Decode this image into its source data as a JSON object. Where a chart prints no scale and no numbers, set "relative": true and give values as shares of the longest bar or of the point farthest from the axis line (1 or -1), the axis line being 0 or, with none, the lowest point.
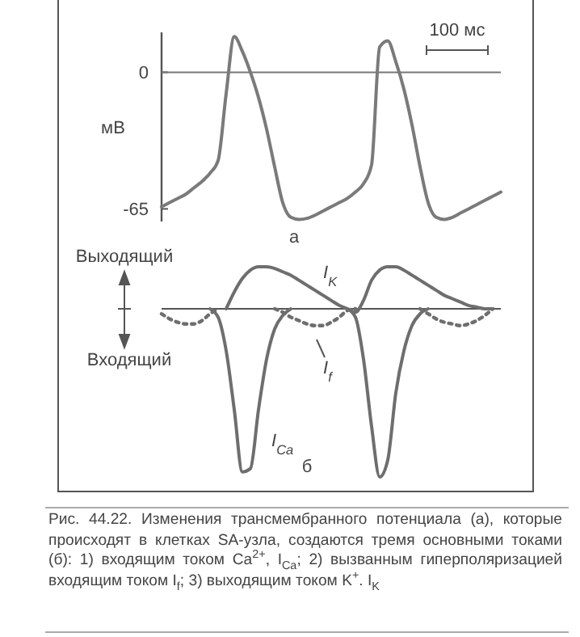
{
  "chart_data": [
    {
      "type": "line",
      "ylabel": "мВ",
      "annotations": [
        "а",
        "100 мс"
      ],
      "categories": [
        null,
        null,
        null,
        null,
        null,
        null,
        null,
        null,
        null,
        null,
        null,
        null,
        null,
        null,
        null,
        null,
        null,
        null,
        null,
        null,
        null,
        null,
        null,
        null,
        null,
        null,
        null,
        null,
        null,
        null,
        null,
        null,
        null,
        null,
        null,
        null,
        null,
        null,
        null,
        null,
        null,
        null,
        null
      ],
      "series": [
        {
          "color": "#7a7a7a",
          "values": [
            -64,
            -62,
            -60,
            -58,
            -55,
            -52,
            -48,
            -42,
            -10,
            17,
            10,
            0,
            -12,
            -27,
            -45,
            -62,
            -69,
            -70,
            -69.5,
            -68,
            -66,
            -64,
            -62,
            -60,
            -57,
            -53,
            -44,
            12,
            15,
            5,
            -8,
            -25,
            -45,
            -62,
            -69,
            -70,
            -69,
            -67,
            -65,
            -63,
            -61,
            -59,
            -57
          ]
        }
      ],
      "ylim": [
        -71,
        19
      ],
      "yticks": [
        0,
        -65
      ],
      "ref_lines": [
        {
          "axis": "y",
          "value": 0
        }
      ]
    },
    {
      "type": "line",
      "relative": true,
      "annotations": [
        "Выходящий",
        "Входящий",
        "б",
        "Рис. 44.22. Изменения трансмембранного потенциала (а), которые происходят в клетках SA-узла, создаются тремя основными токами (б): 1) входящим током Ca$^{2+}$, I$_{Ca}$; 2) вызванным гиперполяризацией входящим током I$_{f}$; 3) выходящим током K$^{+}$. I$_{K}$"
      ],
      "categories": [
        null,
        null,
        null,
        null,
        null,
        null,
        null,
        null,
        null,
        null,
        null,
        null,
        null,
        null,
        null,
        null,
        null,
        null,
        null,
        null,
        null,
        null,
        null,
        null,
        null,
        null,
        null,
        null,
        null,
        null,
        null,
        null,
        null,
        null,
        null,
        null,
        null,
        null,
        null,
        null,
        null,
        null,
        null
      ],
      "series": [
        {
          "name": "I$_{K}$",
          "color": "#6e6e6e",
          "line_style": "solid",
          "values": [
            null,
            null,
            null,
            null,
            null,
            null,
            null,
            null,
            0,
            0.1,
            0.18,
            0.23,
            0.25,
            0.25,
            0.24,
            0.22,
            0.2,
            0.17,
            0.14,
            0.11,
            0.08,
            0.05,
            0.02,
            0,
            -0.02,
            0.05,
            0.17,
            0.23,
            0.25,
            0.25,
            0.23,
            0.2,
            0.17,
            0.14,
            0.11,
            0.08,
            0.06,
            0.04,
            0.02,
            0.01,
            0,
            0,
            null
          ]
        },
        {
          "name": "I$_{f}$",
          "color": "#6e6e6e",
          "line_style": "dotted",
          "values": [
            -0.03,
            -0.06,
            -0.08,
            -0.09,
            -0.09,
            -0.07,
            -0.03,
            0,
            null,
            null,
            null,
            null,
            null,
            null,
            0,
            -0.02,
            -0.05,
            -0.07,
            -0.09,
            -0.1,
            -0.1,
            -0.08,
            -0.05,
            -0.01,
            0,
            null,
            null,
            null,
            null,
            null,
            null,
            null,
            0,
            -0.03,
            -0.06,
            -0.08,
            -0.09,
            -0.1,
            -0.09,
            -0.07,
            -0.04,
            0,
            null
          ]
        },
        {
          "name": "I$_{Ca}$",
          "color": "#6e6e6e",
          "line_style": "solid",
          "values": [
            null,
            null,
            null,
            null,
            null,
            null,
            0,
            -0.05,
            -0.25,
            -0.6,
            -0.97,
            -0.95,
            -0.6,
            -0.3,
            -0.12,
            -0.04,
            0,
            null,
            null,
            null,
            null,
            null,
            null,
            0,
            -0.05,
            -0.3,
            -0.7,
            -1,
            -0.9,
            -0.5,
            -0.25,
            -0.1,
            -0.03,
            0,
            null,
            null,
            null,
            null,
            null,
            null,
            null,
            null,
            null
          ]
        }
      ]
    }
  ]
}
